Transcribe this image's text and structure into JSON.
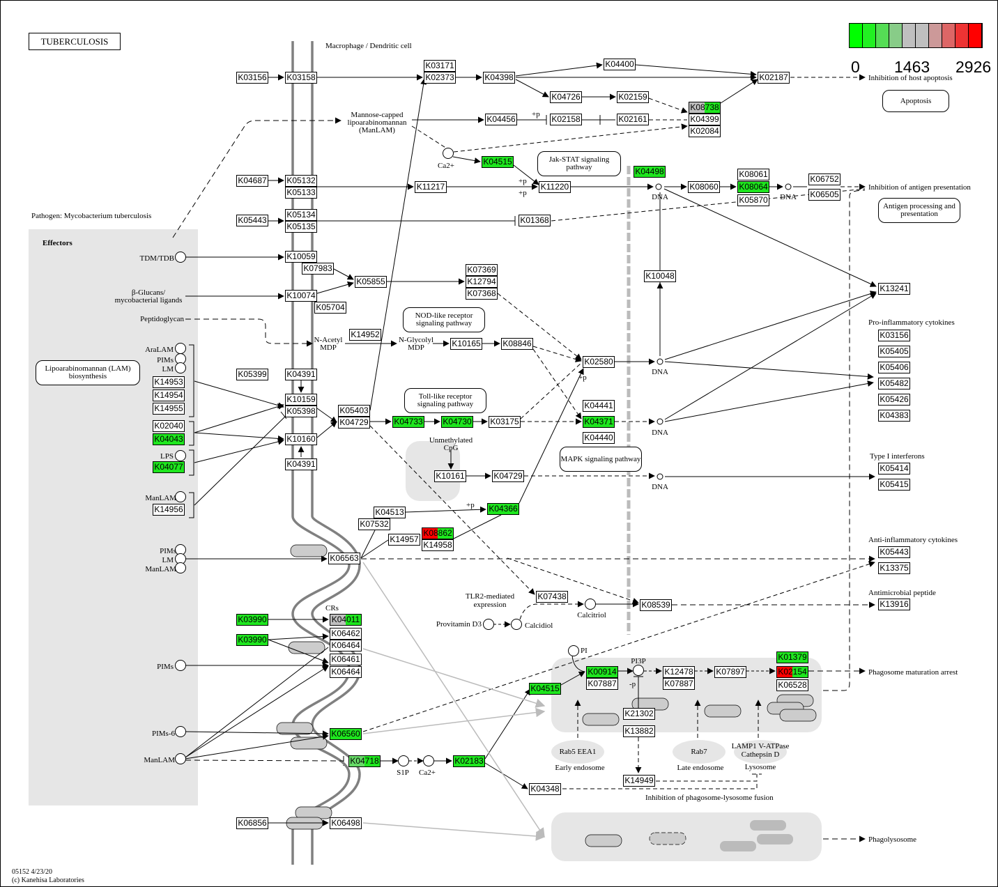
{
  "title": "TUBERCULOSIS",
  "legend": {
    "colors": [
      "#00ff00",
      "#22f022",
      "#55dd55",
      "#88cc88",
      "#bfbfbf",
      "#bfbfbf",
      "#cc9999",
      "#dd6666",
      "#ee3333",
      "#ff0000"
    ],
    "min": "0",
    "mid": "1463",
    "max": "2926"
  },
  "colors": {
    "green": "#1ee61e",
    "red": "#ff0000",
    "gray": "#bfbfbf",
    "lightgreen": "#66d966",
    "white": "#ffffff"
  },
  "genes": [
    {
      "label": "K03156",
      "colors": [
        "white"
      ]
    },
    {
      "label": "K03158",
      "colors": [
        "white"
      ]
    },
    {
      "label": "K03171",
      "colors": [
        "white"
      ]
    },
    {
      "label": "K02373",
      "colors": [
        "white"
      ]
    },
    {
      "label": "K04398",
      "colors": [
        "white"
      ]
    },
    {
      "label": "K04400",
      "colors": [
        "white"
      ]
    },
    {
      "label": "K02187",
      "colors": [
        "white"
      ]
    },
    {
      "label": "K04726",
      "colors": [
        "white"
      ]
    },
    {
      "label": "K02159",
      "colors": [
        "white"
      ]
    },
    {
      "label": "K08738",
      "colors": [
        "gray",
        "green"
      ]
    },
    {
      "label": "K04399",
      "colors": [
        "white"
      ]
    },
    {
      "label": "K02084",
      "colors": [
        "white"
      ]
    },
    {
      "label": "K04456",
      "colors": [
        "white"
      ]
    },
    {
      "label": "K02158",
      "colors": [
        "white"
      ]
    },
    {
      "label": "K02161",
      "colors": [
        "white"
      ]
    },
    {
      "label": "K04515",
      "colors": [
        "green"
      ]
    },
    {
      "label": "K04498",
      "colors": [
        "green"
      ]
    },
    {
      "label": "K04687",
      "colors": [
        "white"
      ]
    },
    {
      "label": "K05132",
      "colors": [
        "white"
      ]
    },
    {
      "label": "K05133",
      "colors": [
        "white"
      ]
    },
    {
      "label": "K11217",
      "colors": [
        "white"
      ]
    },
    {
      "label": "K11220",
      "colors": [
        "white"
      ]
    },
    {
      "label": "K08060",
      "colors": [
        "white"
      ]
    },
    {
      "label": "K08061",
      "colors": [
        "white"
      ]
    },
    {
      "label": "K08064",
      "colors": [
        "green"
      ]
    },
    {
      "label": "K05870",
      "colors": [
        "white"
      ]
    },
    {
      "label": "K06752",
      "colors": [
        "white"
      ]
    },
    {
      "label": "K06505",
      "colors": [
        "white"
      ]
    },
    {
      "label": "K05443",
      "colors": [
        "white"
      ]
    },
    {
      "label": "K05134",
      "colors": [
        "white"
      ]
    },
    {
      "label": "K05135",
      "colors": [
        "white"
      ]
    },
    {
      "label": "K01368",
      "colors": [
        "white"
      ]
    },
    {
      "label": "K10059",
      "colors": [
        "white"
      ]
    },
    {
      "label": "K07983",
      "colors": [
        "white"
      ]
    },
    {
      "label": "K05855",
      "colors": [
        "white"
      ]
    },
    {
      "label": "K07369",
      "colors": [
        "white"
      ]
    },
    {
      "label": "K12794",
      "colors": [
        "white"
      ]
    },
    {
      "label": "K07368",
      "colors": [
        "white"
      ]
    },
    {
      "label": "K10074",
      "colors": [
        "white"
      ]
    },
    {
      "label": "K05704",
      "colors": [
        "white"
      ]
    },
    {
      "label": "K10048",
      "colors": [
        "white"
      ]
    },
    {
      "label": "K13241",
      "colors": [
        "white"
      ]
    },
    {
      "label": "K14952",
      "colors": [
        "white"
      ]
    },
    {
      "label": "K10165",
      "colors": [
        "white"
      ]
    },
    {
      "label": "K08846",
      "colors": [
        "white"
      ]
    },
    {
      "label": "K02580",
      "colors": [
        "white"
      ]
    },
    {
      "label": "K05399",
      "colors": [
        "white"
      ]
    },
    {
      "label": "K04391",
      "colors": [
        "white"
      ]
    },
    {
      "label": "K14953",
      "colors": [
        "white"
      ]
    },
    {
      "label": "K14954",
      "colors": [
        "white"
      ]
    },
    {
      "label": "K14955",
      "colors": [
        "white"
      ]
    },
    {
      "label": "K10159",
      "colors": [
        "white"
      ]
    },
    {
      "label": "K05398",
      "colors": [
        "white"
      ]
    },
    {
      "label": "K05403",
      "colors": [
        "white"
      ]
    },
    {
      "label": "K04729",
      "colors": [
        "white"
      ]
    },
    {
      "label": "K04733",
      "colors": [
        "green"
      ]
    },
    {
      "label": "K04730",
      "colors": [
        "green"
      ]
    },
    {
      "label": "K03175",
      "colors": [
        "white"
      ]
    },
    {
      "label": "K04441",
      "colors": [
        "white"
      ]
    },
    {
      "label": "K04371",
      "colors": [
        "green"
      ]
    },
    {
      "label": "K04440",
      "colors": [
        "white"
      ]
    },
    {
      "label": "K02040",
      "colors": [
        "white"
      ]
    },
    {
      "label": "K04043",
      "colors": [
        "green"
      ]
    },
    {
      "label": "K10160",
      "colors": [
        "white"
      ]
    },
    {
      "label": "K04391",
      "colors": [
        "white"
      ]
    },
    {
      "label": "K04077",
      "colors": [
        "green"
      ]
    },
    {
      "label": "K10161",
      "colors": [
        "white"
      ]
    },
    {
      "label": "K04729",
      "colors": [
        "white"
      ]
    },
    {
      "label": "K14956",
      "colors": [
        "white"
      ]
    },
    {
      "label": "K04513",
      "colors": [
        "white"
      ]
    },
    {
      "label": "K04366",
      "colors": [
        "green"
      ]
    },
    {
      "label": "K07532",
      "colors": [
        "white"
      ]
    },
    {
      "label": "K08862",
      "colors": [
        "red",
        "green"
      ]
    },
    {
      "label": "K14957",
      "colors": [
        "white"
      ]
    },
    {
      "label": "K14958",
      "colors": [
        "white"
      ]
    },
    {
      "label": "K06563",
      "colors": [
        "white"
      ]
    },
    {
      "label": "K07438",
      "colors": [
        "white"
      ]
    },
    {
      "label": "K08539",
      "colors": [
        "white"
      ]
    },
    {
      "label": "K03990",
      "colors": [
        "green"
      ]
    },
    {
      "label": "K04011",
      "colors": [
        "gray",
        "green"
      ]
    },
    {
      "label": "K03990",
      "colors": [
        "green"
      ]
    },
    {
      "label": "K06462",
      "colors": [
        "white"
      ]
    },
    {
      "label": "K06464",
      "colors": [
        "white"
      ]
    },
    {
      "label": "K06461",
      "colors": [
        "white"
      ]
    },
    {
      "label": "K06464",
      "colors": [
        "white"
      ]
    },
    {
      "label": "K00914",
      "colors": [
        "green"
      ]
    },
    {
      "label": "K07887",
      "colors": [
        "white"
      ]
    },
    {
      "label": "K12478",
      "colors": [
        "white"
      ]
    },
    {
      "label": "K07887",
      "colors": [
        "white"
      ]
    },
    {
      "label": "K07897",
      "colors": [
        "white"
      ]
    },
    {
      "label": "K01379",
      "colors": [
        "green"
      ]
    },
    {
      "label": "K02154",
      "colors": [
        "red",
        "green"
      ]
    },
    {
      "label": "K06528",
      "colors": [
        "white"
      ]
    },
    {
      "label": "K04515",
      "colors": [
        "green"
      ]
    },
    {
      "label": "K21302",
      "colors": [
        "white"
      ]
    },
    {
      "label": "K13882",
      "colors": [
        "white"
      ]
    },
    {
      "label": "K06560",
      "colors": [
        "green"
      ]
    },
    {
      "label": "K04718",
      "colors": [
        "lightgreen",
        "green"
      ]
    },
    {
      "label": "K02183",
      "colors": [
        "green"
      ]
    },
    {
      "label": "K04348",
      "colors": [
        "white"
      ]
    },
    {
      "label": "K14949",
      "colors": [
        "white"
      ]
    },
    {
      "label": "K06856",
      "colors": [
        "white"
      ]
    },
    {
      "label": "K06498",
      "colors": [
        "white"
      ]
    },
    {
      "label": "K03156",
      "colors": [
        "white"
      ]
    },
    {
      "label": "K05405",
      "colors": [
        "white"
      ]
    },
    {
      "label": "K05406",
      "colors": [
        "white"
      ]
    },
    {
      "label": "K05482",
      "colors": [
        "white"
      ]
    },
    {
      "label": "K05426",
      "colors": [
        "white"
      ]
    },
    {
      "label": "K04383",
      "colors": [
        "white"
      ]
    },
    {
      "label": "K05414",
      "colors": [
        "white"
      ]
    },
    {
      "label": "K05415",
      "colors": [
        "white"
      ]
    },
    {
      "label": "K05443",
      "colors": [
        "white"
      ]
    },
    {
      "label": "K13375",
      "colors": [
        "white"
      ]
    },
    {
      "label": "K13916",
      "colors": [
        "white"
      ]
    }
  ],
  "pathway_links": [
    {
      "label": "Apoptosis"
    },
    {
      "label": "Jak-STAT signaling pathway"
    },
    {
      "label": "Antigen processing and presentation"
    },
    {
      "label": "NOD-like receptor signaling pathway"
    },
    {
      "label": "Lipoarabinomannan (LAM) biosynthesis"
    },
    {
      "label": "Toll-like receptor signaling pathway"
    },
    {
      "label": "MAPK signaling pathway"
    }
  ],
  "labels": [
    "Macrophage / Dendritic cell",
    "Inhibition of host apoptosis",
    "Mannose-capped",
    "lipoarabinomannan",
    "(ManLAM)",
    "Ca2+",
    "+p",
    "+p",
    "+p",
    "+p",
    "+p",
    "DNA",
    "DNA",
    "DNA",
    "DNA",
    "DNA",
    "Inhibition of antigen presentation",
    "Pathogen: Mycobacterium tuberculosis",
    "Effectors",
    "TDM/TDB",
    "β-Glucans/",
    "mycobacterial ligands",
    "Peptidoglycan",
    "N-Acetyl",
    "MDP",
    "N-Glycolyl",
    "MDP",
    "AraLAM",
    "PIMs",
    "LM",
    "Unmethylated",
    "CpG",
    "LPS",
    "Pro-inflammatory cytokines",
    "Type I interferons",
    "ManLAM",
    "Anti-inflammatory cytokines",
    "PIMs",
    "LM",
    "ManLAM",
    "TLR2-mediated",
    "expression",
    "Calcitriol",
    "Provitamin D3",
    "Calcidiol",
    "Antimicrobial peptide",
    "CRs",
    "PI",
    "PI3P",
    "-p",
    "PIMs",
    "Phagosome maturation arrest",
    "PIMs-6",
    "ManLAM",
    "S1P",
    "Ca2+",
    "Rab5  EEA1",
    "Early endosome",
    "Rab7",
    "Late endosome",
    "LAMP1 V-ATPase",
    "Cathepsin D",
    "Lysosome",
    "Inhibition of phagosome-lysosome fusion",
    "Phagolysosome"
  ],
  "footer": {
    "line1": "05152 4/23/20",
    "line2": "(c) Kanehisa Laboratories"
  }
}
